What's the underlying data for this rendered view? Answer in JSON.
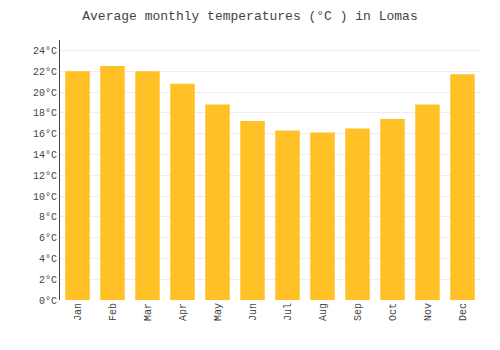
{
  "chart_data": {
    "type": "bar",
    "title": "Average monthly temperatures (°C ) in Lomas",
    "categories": [
      "Jan",
      "Feb",
      "Mar",
      "Apr",
      "May",
      "Jun",
      "Jul",
      "Aug",
      "Sep",
      "Oct",
      "Nov",
      "Dec"
    ],
    "values": [
      22.0,
      22.5,
      22.0,
      20.8,
      18.8,
      17.2,
      16.3,
      16.1,
      16.5,
      17.4,
      18.8,
      21.7
    ],
    "color": "#FFC125",
    "ylim": [
      0,
      25
    ],
    "yticks": [
      {
        "value": 0,
        "label": "0°C"
      },
      {
        "value": 2,
        "label": "2°C"
      },
      {
        "value": 4,
        "label": "4°C"
      },
      {
        "value": 6,
        "label": "6°C"
      },
      {
        "value": 8,
        "label": "8°C"
      },
      {
        "value": 10,
        "label": "10°C"
      },
      {
        "value": 12,
        "label": "12°C"
      },
      {
        "value": 14,
        "label": "14°C"
      },
      {
        "value": 16,
        "label": "16°C"
      },
      {
        "value": 18,
        "label": "18°C"
      },
      {
        "value": 20,
        "label": "20°C"
      },
      {
        "value": 22,
        "label": "22°C"
      },
      {
        "value": 24,
        "label": "24°C"
      }
    ],
    "grid": true
  }
}
